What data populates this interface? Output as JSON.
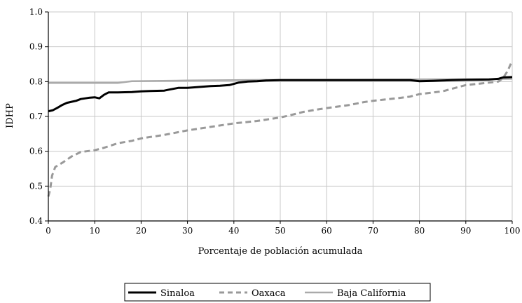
{
  "chart_data": {
    "type": "line",
    "xlabel": "Porcentaje de población acumulada",
    "ylabel": "IDHP",
    "xlim": [
      0,
      100
    ],
    "ylim": [
      0.4,
      1.0
    ],
    "x_ticks": [
      0,
      10,
      20,
      30,
      40,
      50,
      60,
      70,
      80,
      90,
      100
    ],
    "y_ticks": [
      "0.4",
      "0.5",
      "0.6",
      "0.7",
      "0.8",
      "0.9",
      "1.0"
    ],
    "grid": true,
    "legend_position": "bottom-center",
    "series": [
      {
        "name": "Sinaloa",
        "color": "#000000",
        "style": "solid",
        "points": [
          [
            0,
            0.715
          ],
          [
            1,
            0.718
          ],
          [
            2,
            0.725
          ],
          [
            3,
            0.733
          ],
          [
            4,
            0.739
          ],
          [
            5,
            0.742
          ],
          [
            6,
            0.745
          ],
          [
            7,
            0.75
          ],
          [
            8,
            0.752
          ],
          [
            9,
            0.754
          ],
          [
            10,
            0.755
          ],
          [
            11,
            0.752
          ],
          [
            12,
            0.762
          ],
          [
            13,
            0.769
          ],
          [
            15,
            0.769
          ],
          [
            18,
            0.77
          ],
          [
            20,
            0.772
          ],
          [
            22,
            0.773
          ],
          [
            25,
            0.774
          ],
          [
            26,
            0.777
          ],
          [
            28,
            0.782
          ],
          [
            30,
            0.782
          ],
          [
            32,
            0.784
          ],
          [
            35,
            0.787
          ],
          [
            37,
            0.788
          ],
          [
            39,
            0.79
          ],
          [
            41,
            0.797
          ],
          [
            43,
            0.8
          ],
          [
            45,
            0.801
          ],
          [
            47,
            0.803
          ],
          [
            50,
            0.804
          ],
          [
            60,
            0.804
          ],
          [
            70,
            0.804
          ],
          [
            78,
            0.804
          ],
          [
            80,
            0.801
          ],
          [
            83,
            0.802
          ],
          [
            85,
            0.803
          ],
          [
            87,
            0.804
          ],
          [
            90,
            0.805
          ],
          [
            95,
            0.806
          ],
          [
            97,
            0.808
          ],
          [
            98,
            0.812
          ],
          [
            100,
            0.813
          ]
        ]
      },
      {
        "name": "Oaxaca",
        "color": "#999999",
        "style": "dashed",
        "points": [
          [
            0,
            0.47
          ],
          [
            0.4,
            0.49
          ],
          [
            0.8,
            0.53
          ],
          [
            1.5,
            0.555
          ],
          [
            3,
            0.567
          ],
          [
            5,
            0.585
          ],
          [
            7,
            0.598
          ],
          [
            10,
            0.603
          ],
          [
            12,
            0.61
          ],
          [
            15,
            0.623
          ],
          [
            18,
            0.63
          ],
          [
            20,
            0.637
          ],
          [
            25,
            0.647
          ],
          [
            30,
            0.66
          ],
          [
            35,
            0.67
          ],
          [
            40,
            0.68
          ],
          [
            45,
            0.687
          ],
          [
            50,
            0.697
          ],
          [
            52,
            0.703
          ],
          [
            55,
            0.713
          ],
          [
            58,
            0.72
          ],
          [
            60,
            0.724
          ],
          [
            65,
            0.733
          ],
          [
            68,
            0.741
          ],
          [
            70,
            0.745
          ],
          [
            75,
            0.752
          ],
          [
            78,
            0.757
          ],
          [
            80,
            0.764
          ],
          [
            85,
            0.772
          ],
          [
            88,
            0.783
          ],
          [
            90,
            0.79
          ],
          [
            95,
            0.797
          ],
          [
            97,
            0.8
          ],
          [
            98,
            0.81
          ],
          [
            99,
            0.83
          ],
          [
            100,
            0.86
          ]
        ]
      },
      {
        "name": "Baja California",
        "color": "#aaaaaa",
        "style": "solid",
        "points": [
          [
            0,
            0.796
          ],
          [
            15,
            0.796
          ],
          [
            18,
            0.801
          ],
          [
            30,
            0.803
          ],
          [
            50,
            0.805
          ],
          [
            70,
            0.806
          ],
          [
            90,
            0.807
          ],
          [
            100,
            0.808
          ]
        ]
      }
    ]
  }
}
